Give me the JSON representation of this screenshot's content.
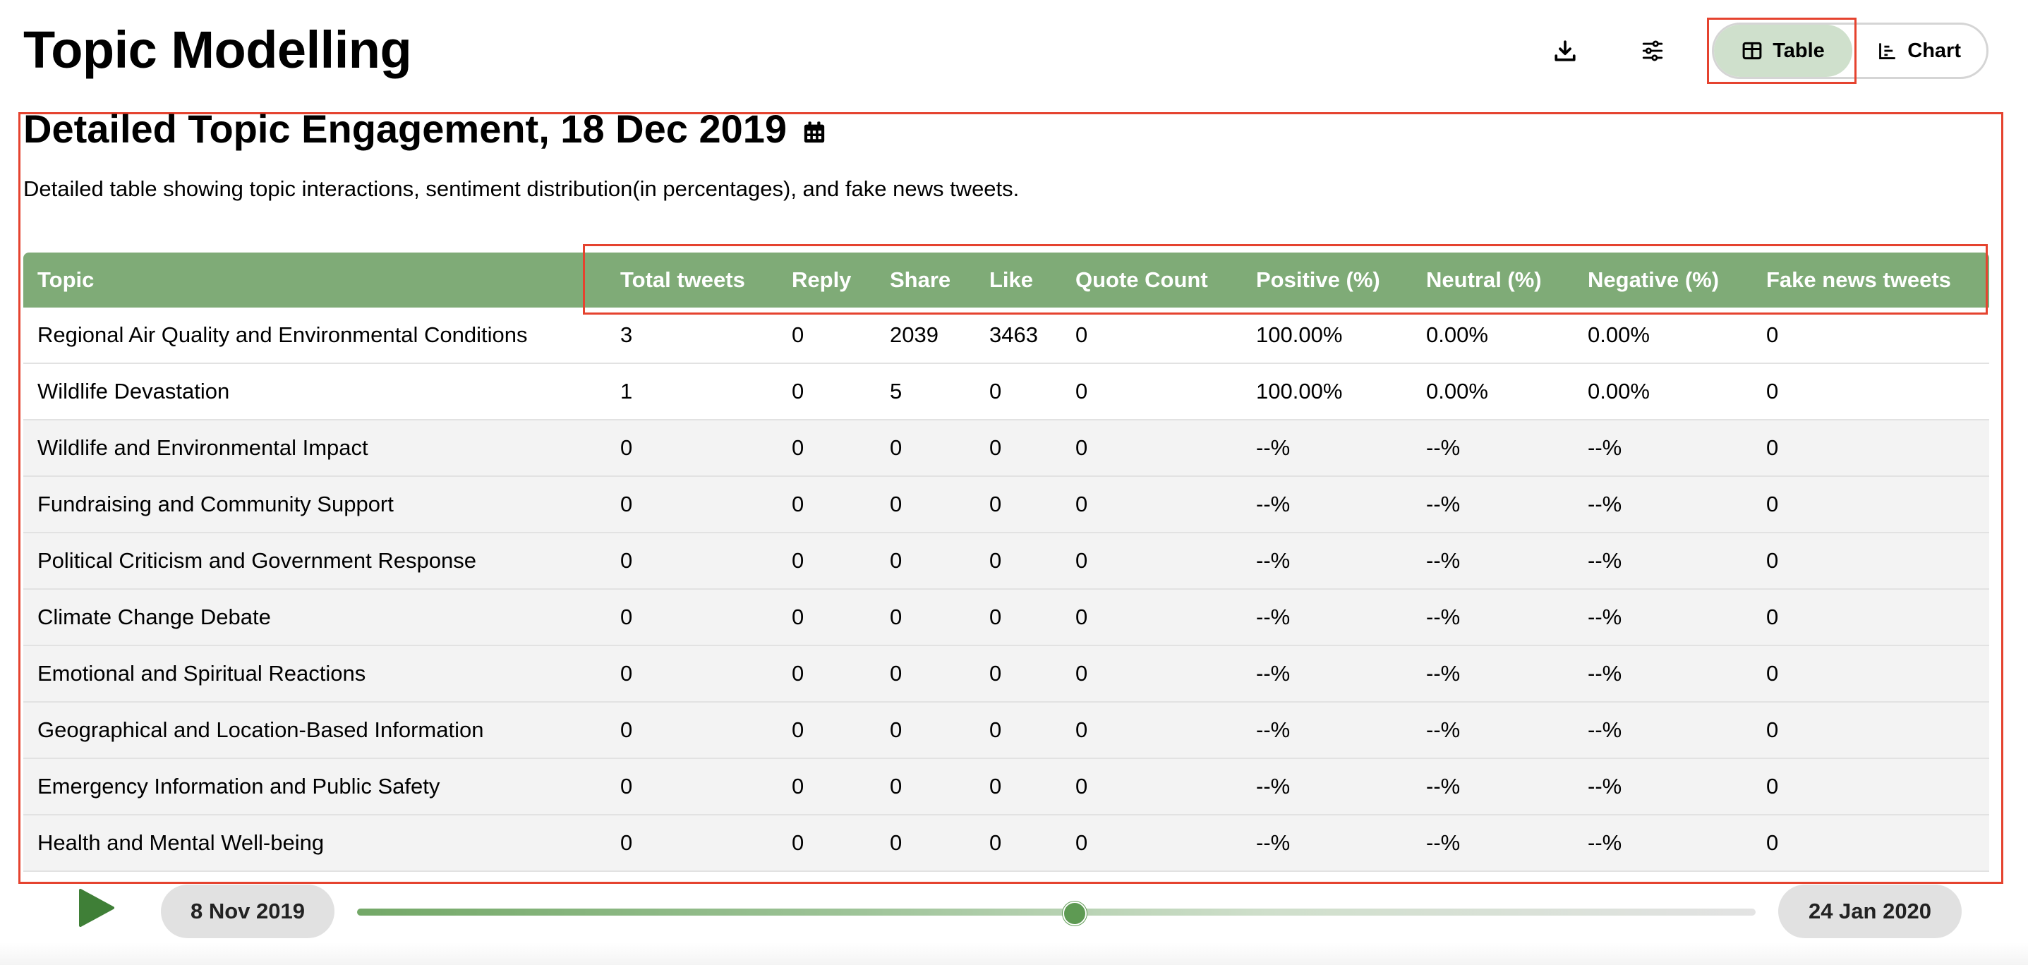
{
  "header": {
    "title": "Topic Modelling",
    "download_icon": "download-icon",
    "settings_icon": "sliders-icon",
    "view_toggle": {
      "options": [
        {
          "label": "Table",
          "icon": "table-icon",
          "active": true
        },
        {
          "label": "Chart",
          "icon": "bar-chart-icon",
          "active": false
        }
      ]
    }
  },
  "section": {
    "title": "Detailed Topic Engagement, 18 Dec 2019",
    "title_icon": "calendar-icon",
    "description": "Detailed table showing topic interactions, sentiment distribution(in percentages), and fake news tweets."
  },
  "table": {
    "columns": [
      "Topic",
      "Total tweets",
      "Reply",
      "Share",
      "Like",
      "Quote Count",
      "Positive (%)",
      "Neutral (%)",
      "Negative (%)",
      "Fake news tweets"
    ],
    "rows": [
      [
        "Regional Air Quality and Environmental Conditions",
        "3",
        "0",
        "2039",
        "3463",
        "0",
        "100.00%",
        "0.00%",
        "0.00%",
        "0"
      ],
      [
        "Wildlife Devastation",
        "1",
        "0",
        "5",
        "0",
        "0",
        "100.00%",
        "0.00%",
        "0.00%",
        "0"
      ],
      [
        "Wildlife and Environmental Impact",
        "0",
        "0",
        "0",
        "0",
        "0",
        "--%",
        "--%",
        "--%",
        "0"
      ],
      [
        "Fundraising and Community Support",
        "0",
        "0",
        "0",
        "0",
        "0",
        "--%",
        "--%",
        "--%",
        "0"
      ],
      [
        "Political Criticism and Government Response",
        "0",
        "0",
        "0",
        "0",
        "0",
        "--%",
        "--%",
        "--%",
        "0"
      ],
      [
        "Climate Change Debate",
        "0",
        "0",
        "0",
        "0",
        "0",
        "--%",
        "--%",
        "--%",
        "0"
      ],
      [
        "Emotional and Spiritual Reactions",
        "0",
        "0",
        "0",
        "0",
        "0",
        "--%",
        "--%",
        "--%",
        "0"
      ],
      [
        "Geographical and Location-Based Information",
        "0",
        "0",
        "0",
        "0",
        "0",
        "--%",
        "--%",
        "--%",
        "0"
      ],
      [
        "Emergency Information and Public Safety",
        "0",
        "0",
        "0",
        "0",
        "0",
        "--%",
        "--%",
        "--%",
        "0"
      ],
      [
        "Health and Mental Well-being",
        "0",
        "0",
        "0",
        "0",
        "0",
        "--%",
        "--%",
        "--%",
        "0"
      ]
    ]
  },
  "timeline": {
    "play_icon": "play-icon",
    "start_date": "8 Nov 2019",
    "end_date": "24 Jan 2020",
    "current_date": "18 Dec 2019"
  },
  "colors": {
    "accent_green": "#7fab77",
    "active_toggle_bg": "#cfe0cc",
    "highlight_outline": "#e5432f",
    "play_green": "#3f7f37"
  }
}
